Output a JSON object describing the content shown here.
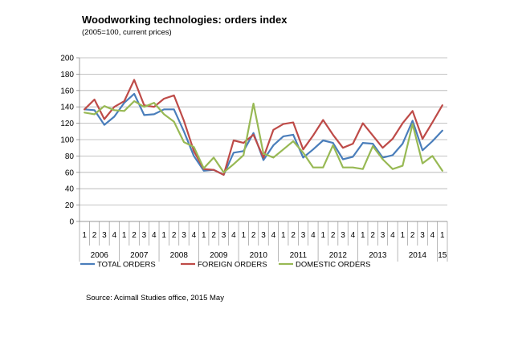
{
  "chart_data": {
    "type": "line",
    "title": "Woodworking technologies: orders index",
    "subtitle": "(2005=100, current prices)",
    "source": "Source: Acimall Studies office, 2015 May",
    "xlabel": "",
    "ylabel": "",
    "ylim": [
      0,
      200
    ],
    "ytick_step": 20,
    "y_ticks": [
      "0",
      "20",
      "40",
      "60",
      "80",
      "100",
      "120",
      "140",
      "160",
      "180",
      "200"
    ],
    "grid": "horizontal",
    "legend_position": "bottom",
    "categories": [
      "1",
      "2",
      "3",
      "4",
      "1",
      "2",
      "3",
      "4",
      "1",
      "2",
      "3",
      "4",
      "1",
      "2",
      "3",
      "4",
      "1",
      "2",
      "3",
      "4",
      "1",
      "2",
      "3",
      "4",
      "1",
      "2",
      "3",
      "4",
      "1",
      "2",
      "3",
      "4",
      "1",
      "2",
      "3",
      "4",
      "1"
    ],
    "years": [
      {
        "label": "2006",
        "quarters": 4
      },
      {
        "label": "2007",
        "quarters": 4
      },
      {
        "label": "2008",
        "quarters": 4
      },
      {
        "label": "2009",
        "quarters": 4
      },
      {
        "label": "2010",
        "quarters": 4
      },
      {
        "label": "2011",
        "quarters": 4
      },
      {
        "label": "2012",
        "quarters": 4
      },
      {
        "label": "2013",
        "quarters": 4
      },
      {
        "label": "2014",
        "quarters": 4
      },
      {
        "label": "15",
        "quarters": 1
      }
    ],
    "series": [
      {
        "name": "TOTAL ORDERS",
        "color": "#4a7ebb",
        "values": [
          137,
          136,
          118,
          128,
          145,
          156,
          130,
          131,
          137,
          137,
          110,
          80,
          62,
          63,
          57,
          84,
          86,
          108,
          75,
          93,
          104,
          106,
          78,
          88,
          99,
          96,
          76,
          79,
          96,
          95,
          78,
          81,
          95,
          123,
          87,
          98,
          111
        ]
      },
      {
        "name": "FOREIGN ORDERS",
        "color": "#be4b48",
        "values": [
          137,
          149,
          125,
          140,
          147,
          173,
          142,
          140,
          150,
          154,
          123,
          86,
          64,
          63,
          57,
          99,
          96,
          106,
          78,
          112,
          119,
          121,
          88,
          105,
          124,
          106,
          90,
          95,
          120,
          105,
          90,
          101,
          120,
          135,
          101,
          121,
          142
        ]
      },
      {
        "name": "DOMESTIC ORDERS",
        "color": "#98b954",
        "values": [
          133,
          131,
          141,
          136,
          135,
          147,
          140,
          145,
          131,
          122,
          97,
          91,
          65,
          78,
          60,
          70,
          81,
          144,
          83,
          78,
          88,
          98,
          84,
          66,
          66,
          93,
          66,
          66,
          64,
          92,
          76,
          64,
          68,
          119,
          71,
          80,
          62
        ]
      }
    ]
  }
}
